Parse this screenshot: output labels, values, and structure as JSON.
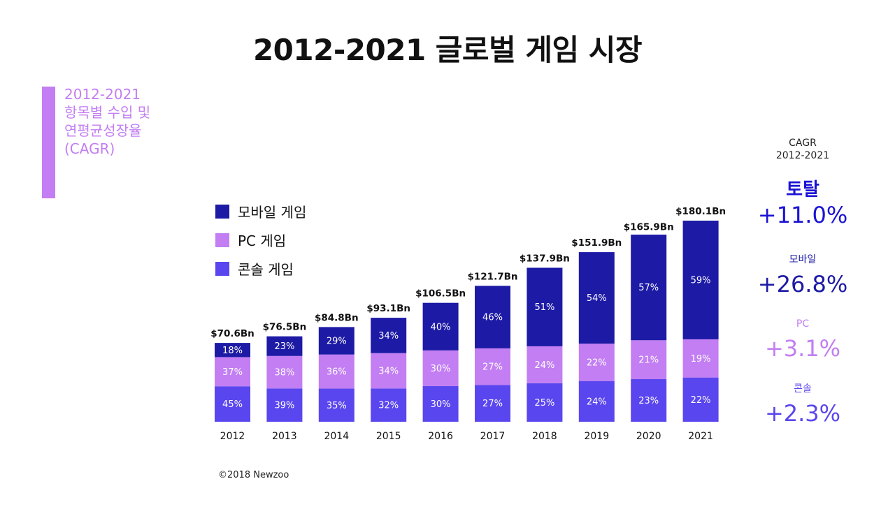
{
  "title": "2012-2021 글로벌 게임 시장",
  "subtitle_lines": [
    "2012-2021",
    "항목별 수입 및",
    "연평균성장율",
    "(CAGR)"
  ],
  "colors": {
    "mobile": "#1d1aa6",
    "pc": "#c27ef2",
    "console": "#5a46ee",
    "accent_bar": "#c27ef2",
    "total_value": "#1a12d4"
  },
  "legend": [
    {
      "label": "모바일 게임",
      "color": "#1d1aa6"
    },
    {
      "label": "PC 게임",
      "color": "#c27ef2"
    },
    {
      "label": "콘솔 게임",
      "color": "#5a46ee"
    }
  ],
  "cagr": {
    "header_line1": "CAGR",
    "header_line2": "2012-2021",
    "total": {
      "name": "토탈",
      "value": "+11.0%",
      "color": "#1a12d4"
    },
    "mobile": {
      "name": "모바일",
      "value": "+26.8%",
      "color": "#1d1aa6"
    },
    "pc": {
      "name": "PC",
      "value": "+3.1%",
      "color": "#c27ef2"
    },
    "console": {
      "name": "콘솔",
      "value": "+2.3%",
      "color": "#5a46ee"
    }
  },
  "copyright": "©2018 Newzoo",
  "chart_data": {
    "type": "bar",
    "stacked": true,
    "categories": [
      "2012",
      "2013",
      "2014",
      "2015",
      "2016",
      "2017",
      "2018",
      "2019",
      "2020",
      "2021"
    ],
    "totals": [
      70.6,
      76.5,
      84.8,
      93.1,
      106.5,
      121.7,
      137.9,
      151.9,
      165.9,
      180.1
    ],
    "total_labels": [
      "$70.6Bn",
      "$76.5Bn",
      "$84.8Bn",
      "$93.1Bn",
      "$106.5Bn",
      "$121.7Bn",
      "$137.9Bn",
      "$151.9Bn",
      "$165.9Bn",
      "$180.1Bn"
    ],
    "series": [
      {
        "name": "콘솔 게임",
        "color": "#5a46ee",
        "share_percent": [
          45,
          39,
          35,
          32,
          30,
          27,
          25,
          24,
          23,
          22
        ]
      },
      {
        "name": "PC 게임",
        "color": "#c27ef2",
        "share_percent": [
          37,
          38,
          36,
          34,
          30,
          27,
          24,
          22,
          21,
          19
        ]
      },
      {
        "name": "모바일 게임",
        "color": "#1d1aa6",
        "share_percent": [
          18,
          23,
          29,
          34,
          40,
          46,
          51,
          54,
          57,
          59
        ]
      }
    ],
    "ylim": [
      0,
      180.1
    ],
    "grid": false,
    "legend_position": "top-left"
  }
}
